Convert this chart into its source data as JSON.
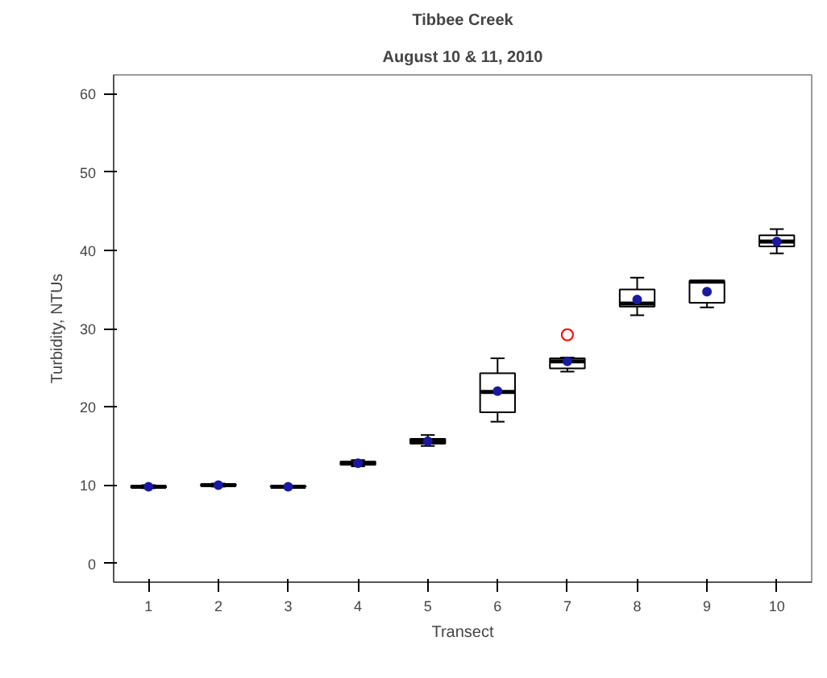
{
  "chart_data": {
    "type": "box",
    "title": "Tibbee Creek",
    "subtitle": "August 10 & 11, 2010",
    "xlabel": "Transect",
    "ylabel": "Turbidity, NTUs",
    "categories": [
      "1",
      "2",
      "3",
      "4",
      "5",
      "6",
      "7",
      "8",
      "9",
      "10"
    ],
    "boxes": [
      {
        "low": 9.6,
        "q1": 9.7,
        "median": 9.8,
        "q3": 9.9,
        "high": 10.0,
        "mean": 9.8
      },
      {
        "low": 9.8,
        "q1": 9.9,
        "median": 10.0,
        "q3": 10.1,
        "high": 10.2,
        "mean": 10.0
      },
      {
        "low": 9.7,
        "q1": 9.8,
        "median": 9.8,
        "q3": 9.9,
        "high": 9.9,
        "mean": 9.8
      },
      {
        "low": 12.4,
        "q1": 12.6,
        "median": 12.8,
        "q3": 13.0,
        "high": 13.2,
        "mean": 12.8
      },
      {
        "low": 15.0,
        "q1": 15.3,
        "median": 15.6,
        "q3": 15.9,
        "high": 16.4,
        "mean": 15.6
      },
      {
        "low": 18.1,
        "q1": 19.3,
        "median": 21.9,
        "q3": 24.3,
        "high": 26.2,
        "mean": 22.0
      },
      {
        "low": 24.5,
        "q1": 24.9,
        "median": 25.8,
        "q3": 26.2,
        "high": 26.3,
        "mean": 25.8,
        "outliers": [
          29.2
        ]
      },
      {
        "low": 31.7,
        "q1": 32.8,
        "median": 33.2,
        "q3": 35.0,
        "high": 36.5,
        "mean": 33.7
      },
      {
        "low": 32.7,
        "q1": 33.3,
        "median": 36.0,
        "q3": 36.1,
        "high": 36.1,
        "mean": 34.7
      },
      {
        "low": 39.6,
        "q1": 40.5,
        "median": 41.1,
        "q3": 41.9,
        "high": 42.7,
        "mean": 41.1
      }
    ],
    "ylim": [
      -2.4,
      62.4
    ],
    "yticks": [
      0,
      10,
      20,
      30,
      40,
      50,
      60
    ],
    "grid": false
  }
}
